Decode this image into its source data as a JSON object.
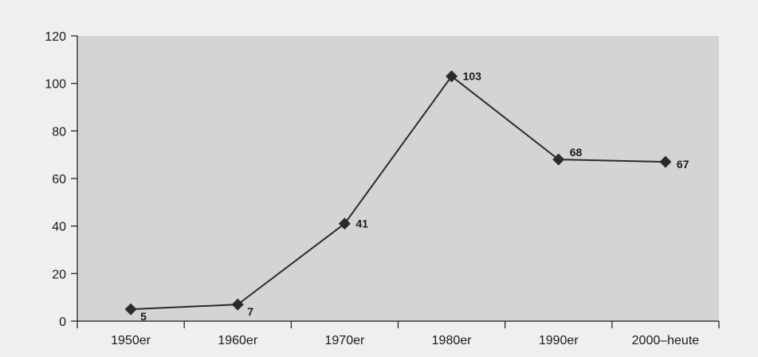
{
  "chart_data": {
    "type": "line",
    "categories": [
      "1950er",
      "1960er",
      "1970er",
      "1980er",
      "1990er",
      "2000–heute"
    ],
    "values": [
      5,
      7,
      41,
      103,
      68,
      67
    ],
    "data_labels": [
      "5",
      "7",
      "41",
      "103",
      "68",
      "67"
    ],
    "yticks": [
      "0",
      "20",
      "40",
      "60",
      "80",
      "100",
      "120"
    ],
    "ylim": [
      0,
      120
    ],
    "marker": "diamond",
    "grid": false,
    "legend": "none",
    "colors": {
      "page_background": "#efefef",
      "plot_background": "#d4d4d6",
      "line": "#2b2b2b",
      "axis": "#1a1a1a"
    }
  }
}
